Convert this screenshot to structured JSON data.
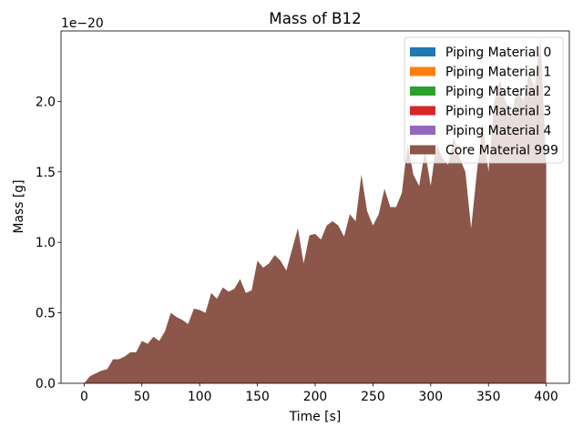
{
  "chart_data": {
    "type": "stacked_area",
    "title": "Mass of B12",
    "xlabel": "Time [s]",
    "ylabel": "Mass [g]",
    "y_offset_label": "1e−20",
    "x": [
      0,
      5,
      10,
      15,
      20,
      25,
      30,
      35,
      40,
      45,
      50,
      55,
      60,
      65,
      70,
      75,
      80,
      85,
      90,
      95,
      100,
      105,
      110,
      115,
      120,
      125,
      130,
      135,
      140,
      145,
      150,
      155,
      160,
      165,
      170,
      175,
      180,
      185,
      190,
      195,
      200,
      205,
      210,
      215,
      220,
      225,
      230,
      235,
      240,
      245,
      250,
      255,
      260,
      265,
      270,
      275,
      280,
      285,
      290,
      295,
      300,
      305,
      310,
      315,
      320,
      325,
      330,
      335,
      340,
      345,
      350,
      355,
      360,
      365,
      370,
      375,
      380,
      385,
      390,
      395,
      400
    ],
    "series": [
      {
        "name": "Piping Material 0",
        "color": "#1f77b4",
        "values": [
          0,
          0,
          0,
          0,
          0,
          0,
          0,
          0,
          0,
          0,
          0,
          0,
          0,
          0,
          0,
          0,
          0,
          0,
          0,
          0,
          0,
          0,
          0,
          0,
          0,
          0,
          0,
          0,
          0,
          0,
          0,
          0,
          0,
          0,
          0,
          0,
          0,
          0,
          0,
          0,
          0,
          0,
          0,
          0,
          0,
          0,
          0,
          0,
          0,
          0,
          0,
          0,
          0,
          0,
          0,
          0,
          0,
          0,
          0,
          0,
          0,
          0,
          0,
          0,
          0,
          0,
          0,
          0,
          0,
          0,
          0,
          0,
          0,
          0,
          0,
          0,
          0,
          0,
          0,
          0,
          0
        ]
      },
      {
        "name": "Piping Material 1",
        "color": "#ff7f0e",
        "values": [
          0,
          0,
          0,
          0,
          0,
          0,
          0,
          0,
          0,
          0,
          0,
          0,
          0,
          0,
          0,
          0,
          0,
          0,
          0,
          0,
          0,
          0,
          0,
          0,
          0,
          0,
          0,
          0,
          0,
          0,
          0,
          0,
          0,
          0,
          0,
          0,
          0,
          0,
          0,
          0,
          0,
          0,
          0,
          0,
          0,
          0,
          0,
          0,
          0,
          0,
          0,
          0,
          0,
          0,
          0,
          0,
          0,
          0,
          0,
          0,
          0,
          0,
          0,
          0,
          0,
          0,
          0,
          0,
          0,
          0,
          0,
          0,
          0,
          0,
          0,
          0,
          0,
          0,
          0,
          0,
          0
        ]
      },
      {
        "name": "Piping Material 2",
        "color": "#2ca02c",
        "values": [
          0,
          0,
          0,
          0,
          0,
          0,
          0,
          0,
          0,
          0,
          0,
          0,
          0,
          0,
          0,
          0,
          0,
          0,
          0,
          0,
          0,
          0,
          0,
          0,
          0,
          0,
          0,
          0,
          0,
          0,
          0,
          0,
          0,
          0,
          0,
          0,
          0,
          0,
          0,
          0,
          0,
          0,
          0,
          0,
          0,
          0,
          0,
          0,
          0,
          0,
          0,
          0,
          0,
          0,
          0,
          0,
          0,
          0,
          0,
          0,
          0,
          0,
          0,
          0,
          0,
          0,
          0,
          0,
          0,
          0,
          0,
          0,
          0,
          0,
          0,
          0,
          0,
          0,
          0,
          0,
          0
        ]
      },
      {
        "name": "Piping Material 3",
        "color": "#d62728",
        "values": [
          0,
          0,
          0,
          0,
          0,
          0,
          0,
          0,
          0,
          0,
          0,
          0,
          0,
          0,
          0,
          0,
          0,
          0,
          0,
          0,
          0,
          0,
          0,
          0,
          0,
          0,
          0,
          0,
          0,
          0,
          0,
          0,
          0,
          0,
          0,
          0,
          0,
          0,
          0,
          0,
          0,
          0,
          0,
          0,
          0,
          0,
          0,
          0,
          0,
          0,
          0,
          0,
          0,
          0,
          0,
          0,
          0,
          0,
          0,
          0,
          0,
          0,
          0,
          0,
          0,
          0,
          0,
          0,
          0,
          0,
          0,
          0,
          0,
          0,
          0,
          0,
          0,
          0,
          0,
          0,
          0
        ]
      },
      {
        "name": "Piping Material 4",
        "color": "#9467bd",
        "values": [
          0,
          0,
          0,
          0,
          0,
          0,
          0,
          0,
          0,
          0,
          0,
          0,
          0,
          0,
          0,
          0,
          0,
          0,
          0,
          0,
          0,
          0,
          0,
          0,
          0,
          0,
          0,
          0,
          0,
          0,
          0,
          0,
          0,
          0,
          0,
          0,
          0,
          0,
          0,
          0,
          0,
          0,
          0,
          0,
          0,
          0,
          0,
          0,
          0,
          0,
          0,
          0,
          0,
          0,
          0,
          0,
          0,
          0,
          0,
          0,
          0,
          0,
          0,
          0,
          0,
          0,
          0,
          0,
          0,
          0,
          0,
          0,
          0,
          0,
          0,
          0,
          0,
          0,
          0,
          0,
          0
        ]
      },
      {
        "name": "Core Material 999",
        "color": "#8c564b",
        "values": [
          0,
          0.05,
          0.07,
          0.09,
          0.1,
          0.17,
          0.17,
          0.19,
          0.22,
          0.22,
          0.3,
          0.28,
          0.33,
          0.3,
          0.37,
          0.5,
          0.47,
          0.45,
          0.42,
          0.53,
          0.52,
          0.5,
          0.64,
          0.6,
          0.68,
          0.65,
          0.67,
          0.74,
          0.64,
          0.66,
          0.87,
          0.82,
          0.85,
          0.91,
          0.87,
          0.8,
          0.95,
          1.1,
          0.85,
          1.05,
          1.06,
          1.02,
          1.12,
          1.15,
          1.12,
          1.04,
          1.2,
          1.15,
          1.48,
          1.22,
          1.12,
          1.2,
          1.38,
          1.25,
          1.25,
          1.35,
          1.7,
          1.48,
          1.4,
          1.65,
          1.4,
          1.7,
          1.6,
          1.55,
          1.75,
          1.6,
          1.5,
          1.1,
          1.5,
          1.85,
          1.5,
          2.0,
          2.15,
          2.0,
          1.9,
          2.1,
          2.0,
          2.2,
          2.1,
          2.45,
          1.55
        ]
      }
    ],
    "xlim": [
      -20,
      420
    ],
    "xticks": [
      0,
      50,
      100,
      150,
      200,
      250,
      300,
      350,
      400
    ],
    "ylim": [
      0,
      2.5
    ],
    "yticks": [
      {
        "value": 0,
        "label": "0.0"
      },
      0.5,
      {
        "value": 1,
        "label": "1.0"
      },
      1.5,
      {
        "value": 2,
        "label": "2.0"
      }
    ],
    "legend": "upper right"
  }
}
